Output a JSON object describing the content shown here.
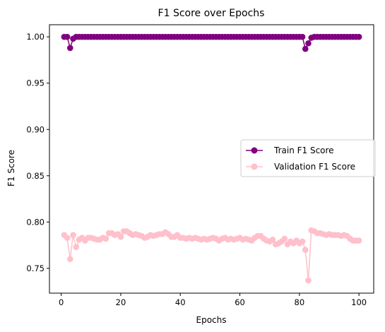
{
  "chart_data": {
    "type": "line",
    "title": "F1 Score over Epochs",
    "xlabel": "Epochs",
    "ylabel": "F1 Score",
    "xlim": [
      -3.95,
      104.95
    ],
    "ylim": [
      0.7232,
      1.0131
    ],
    "xticks": [
      0,
      20,
      40,
      60,
      80,
      100
    ],
    "yticks": [
      0.75,
      0.8,
      0.85,
      0.9,
      0.95,
      1.0
    ],
    "xtick_labels": [
      "0",
      "20",
      "40",
      "60",
      "80",
      "100"
    ],
    "ytick_labels": [
      "0.75",
      "0.80",
      "0.85",
      "0.90",
      "0.95",
      "1.00"
    ],
    "grid": false,
    "legend_position": "center-right",
    "x": [
      1,
      2,
      3,
      4,
      5,
      6,
      7,
      8,
      9,
      10,
      11,
      12,
      13,
      14,
      15,
      16,
      17,
      18,
      19,
      20,
      21,
      22,
      23,
      24,
      25,
      26,
      27,
      28,
      29,
      30,
      31,
      32,
      33,
      34,
      35,
      36,
      37,
      38,
      39,
      40,
      41,
      42,
      43,
      44,
      45,
      46,
      47,
      48,
      49,
      50,
      51,
      52,
      53,
      54,
      55,
      56,
      57,
      58,
      59,
      60,
      61,
      62,
      63,
      64,
      65,
      66,
      67,
      68,
      69,
      70,
      71,
      72,
      73,
      74,
      75,
      76,
      77,
      78,
      79,
      80,
      81,
      82,
      83,
      84,
      85,
      86,
      87,
      88,
      89,
      90,
      91,
      92,
      93,
      94,
      95,
      96,
      97,
      98,
      99,
      100
    ],
    "series": [
      {
        "name": "Train F1 Score",
        "color": "#800080",
        "values": [
          1.0,
          1.0,
          0.988,
          0.998,
          1.0,
          1.0,
          1.0,
          1.0,
          1.0,
          1.0,
          1.0,
          1.0,
          1.0,
          1.0,
          1.0,
          1.0,
          1.0,
          1.0,
          1.0,
          1.0,
          1.0,
          1.0,
          1.0,
          1.0,
          1.0,
          1.0,
          1.0,
          1.0,
          1.0,
          1.0,
          1.0,
          1.0,
          1.0,
          1.0,
          1.0,
          1.0,
          1.0,
          1.0,
          1.0,
          1.0,
          1.0,
          1.0,
          1.0,
          1.0,
          1.0,
          1.0,
          1.0,
          1.0,
          1.0,
          1.0,
          1.0,
          1.0,
          1.0,
          1.0,
          1.0,
          1.0,
          1.0,
          1.0,
          1.0,
          1.0,
          1.0,
          1.0,
          1.0,
          1.0,
          1.0,
          1.0,
          1.0,
          1.0,
          1.0,
          1.0,
          1.0,
          1.0,
          1.0,
          1.0,
          1.0,
          1.0,
          1.0,
          1.0,
          1.0,
          1.0,
          1.0,
          0.987,
          0.993,
          0.999,
          1.0,
          1.0,
          1.0,
          1.0,
          1.0,
          1.0,
          1.0,
          1.0,
          1.0,
          1.0,
          1.0,
          1.0,
          1.0,
          1.0,
          1.0,
          1.0
        ]
      },
      {
        "name": "Validation F1 Score",
        "color": "#ffc0cb",
        "values": [
          0.786,
          0.783,
          0.76,
          0.786,
          0.773,
          0.781,
          0.783,
          0.78,
          0.783,
          0.783,
          0.782,
          0.781,
          0.781,
          0.783,
          0.782,
          0.788,
          0.788,
          0.786,
          0.787,
          0.784,
          0.79,
          0.79,
          0.788,
          0.786,
          0.787,
          0.786,
          0.785,
          0.783,
          0.784,
          0.786,
          0.785,
          0.786,
          0.787,
          0.787,
          0.789,
          0.787,
          0.784,
          0.784,
          0.786,
          0.783,
          0.783,
          0.782,
          0.783,
          0.782,
          0.783,
          0.782,
          0.781,
          0.782,
          0.781,
          0.782,
          0.783,
          0.782,
          0.78,
          0.782,
          0.783,
          0.781,
          0.782,
          0.781,
          0.782,
          0.783,
          0.781,
          0.782,
          0.781,
          0.78,
          0.783,
          0.785,
          0.785,
          0.782,
          0.78,
          0.779,
          0.781,
          0.776,
          0.777,
          0.779,
          0.782,
          0.776,
          0.779,
          0.777,
          0.78,
          0.777,
          0.779,
          0.77,
          0.737,
          0.791,
          0.79,
          0.788,
          0.788,
          0.787,
          0.786,
          0.787,
          0.786,
          0.786,
          0.786,
          0.785,
          0.786,
          0.785,
          0.782,
          0.78,
          0.78,
          0.78
        ]
      }
    ]
  }
}
